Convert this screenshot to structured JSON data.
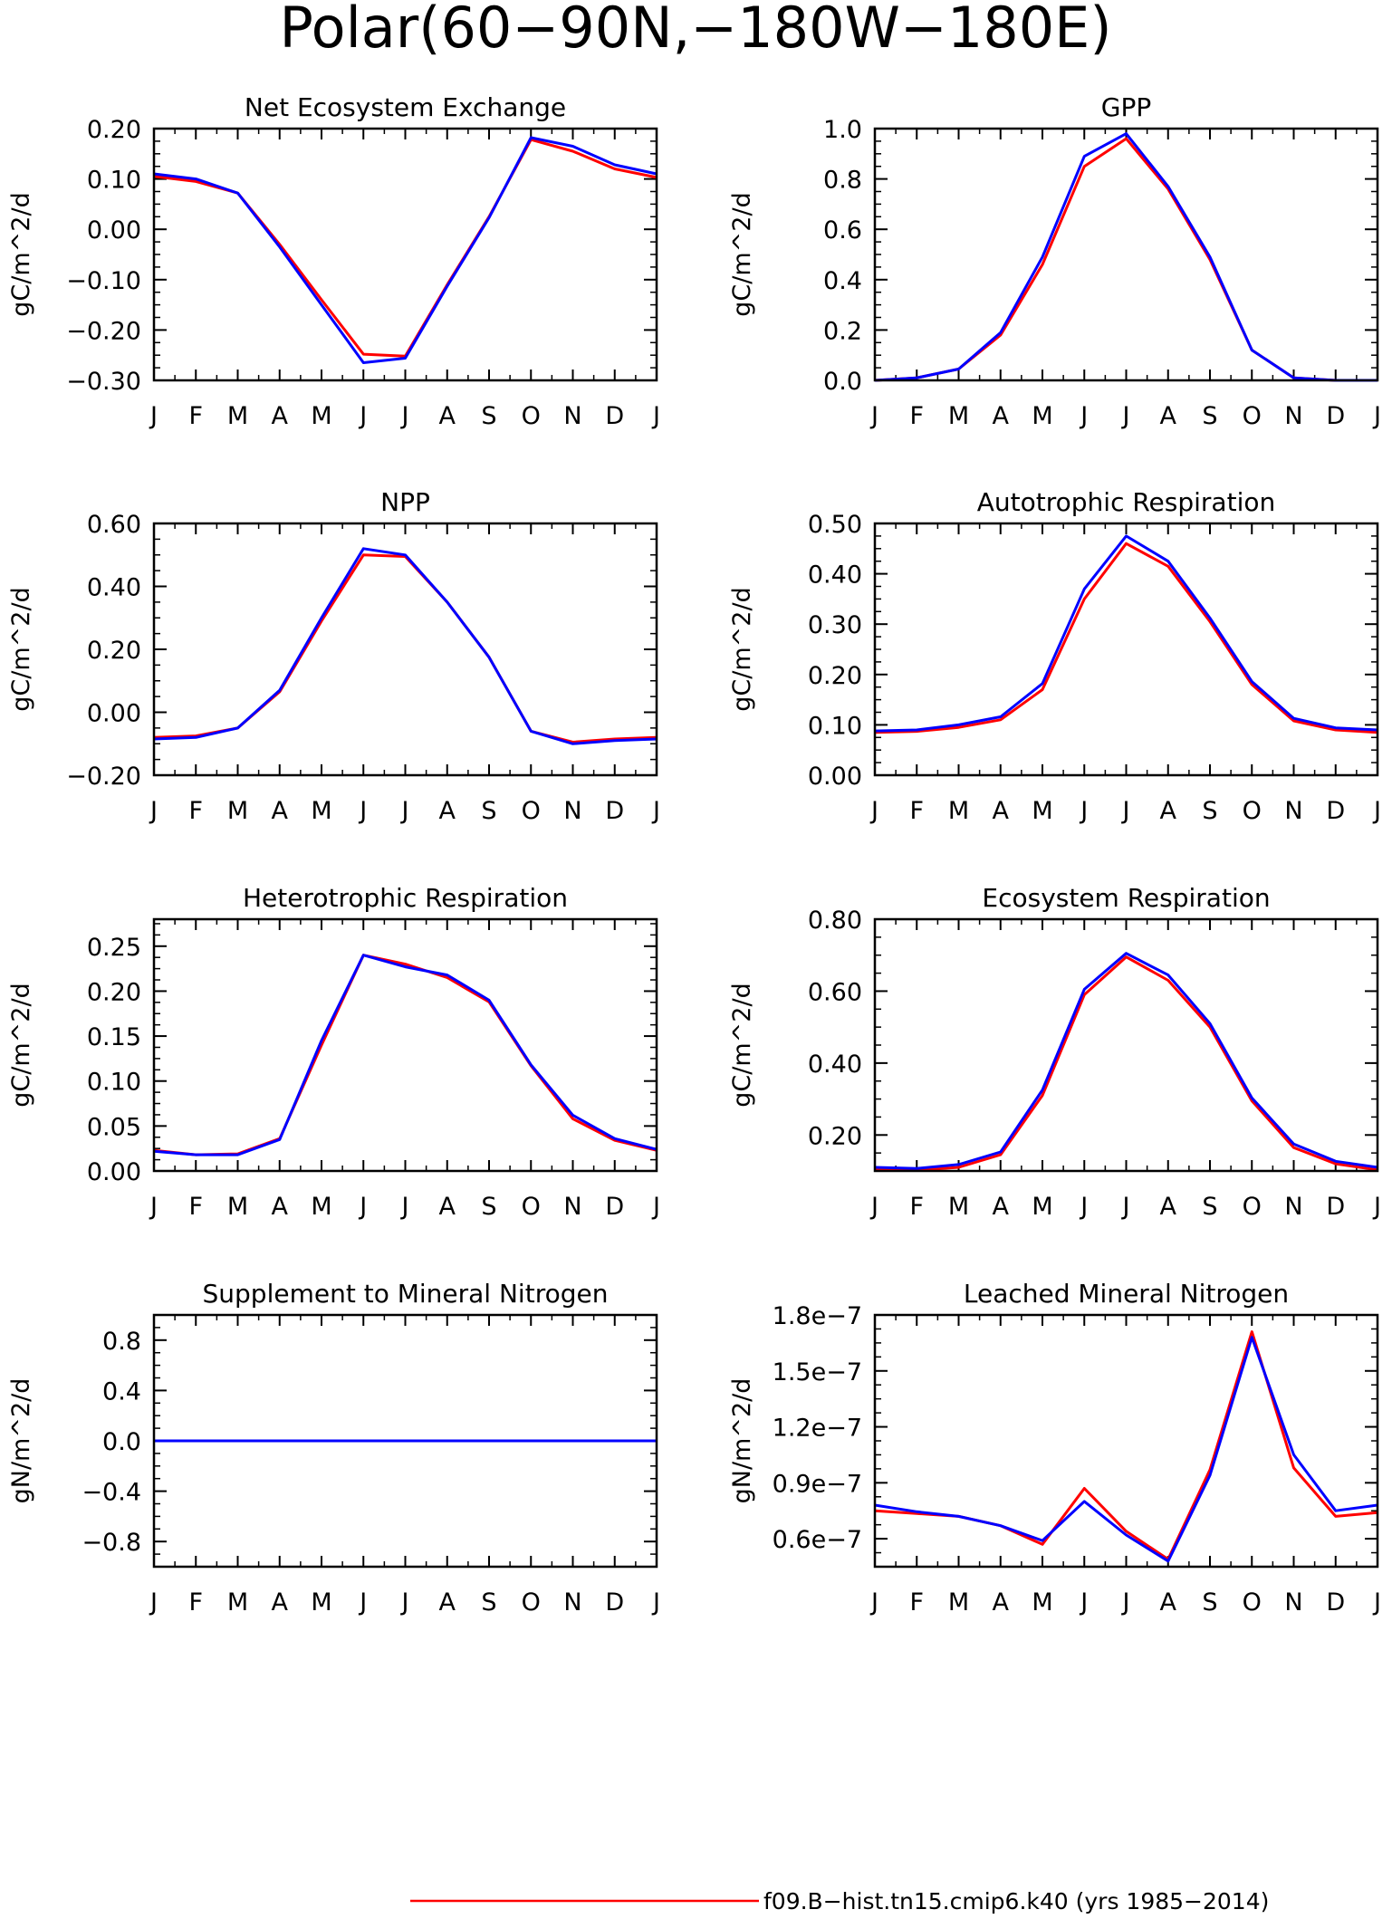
{
  "page": {
    "title": "Polar(60−90N,−180W−180E)"
  },
  "colors": {
    "series1": "#ff0000",
    "series2": "#0000ff",
    "axis": "#000000"
  },
  "legend": {
    "entries": [
      {
        "label": "f09.B−hist.tn15.cmip6.k40 (yrs 1985−2014)",
        "color": "#ff0000"
      }
    ]
  },
  "chart_data": [
    {
      "type": "line",
      "title": "Net Ecosystem Exchange",
      "ylabel": "gC/m^2/d",
      "categories": [
        "J",
        "F",
        "M",
        "A",
        "M",
        "J",
        "J",
        "A",
        "S",
        "O",
        "N",
        "D",
        "J"
      ],
      "ylim": [
        -0.3,
        0.2
      ],
      "yticks": [
        -0.3,
        -0.2,
        -0.1,
        0.0,
        0.1,
        0.2
      ],
      "ytick_labels": [
        "−0.30",
        "−0.20",
        "−0.10",
        "0.00",
        "0.10",
        "0.20"
      ],
      "series": [
        {
          "color": "#ff0000",
          "values": [
            0.105,
            0.095,
            0.072,
            -0.03,
            -0.14,
            -0.248,
            -0.252,
            -0.11,
            0.025,
            0.178,
            0.155,
            0.12,
            0.103
          ]
        },
        {
          "color": "#0000ff",
          "values": [
            0.11,
            0.1,
            0.072,
            -0.035,
            -0.15,
            -0.265,
            -0.256,
            -0.113,
            0.023,
            0.182,
            0.165,
            0.128,
            0.11
          ]
        }
      ]
    },
    {
      "type": "line",
      "title": "GPP",
      "ylabel": "gC/m^2/d",
      "categories": [
        "J",
        "F",
        "M",
        "A",
        "M",
        "J",
        "J",
        "A",
        "S",
        "O",
        "N",
        "D",
        "J"
      ],
      "ylim": [
        0.0,
        1.0
      ],
      "yticks": [
        0.0,
        0.2,
        0.4,
        0.6,
        0.8,
        1.0
      ],
      "ytick_labels": [
        "0.0",
        "0.2",
        "0.4",
        "0.6",
        "0.8",
        "1.0"
      ],
      "series": [
        {
          "color": "#ff0000",
          "values": [
            0.0,
            0.01,
            0.045,
            0.18,
            0.46,
            0.85,
            0.96,
            0.76,
            0.48,
            0.12,
            0.01,
            0.0,
            0.0
          ]
        },
        {
          "color": "#0000ff",
          "values": [
            0.0,
            0.01,
            0.045,
            0.19,
            0.49,
            0.89,
            0.98,
            0.77,
            0.49,
            0.12,
            0.01,
            0.0,
            0.0
          ]
        }
      ]
    },
    {
      "type": "line",
      "title": "NPP",
      "ylabel": "gC/m^2/d",
      "categories": [
        "J",
        "F",
        "M",
        "A",
        "M",
        "J",
        "J",
        "A",
        "S",
        "O",
        "N",
        "D",
        "J"
      ],
      "ylim": [
        -0.2,
        0.6
      ],
      "yticks": [
        -0.2,
        0.0,
        0.2,
        0.4,
        0.6
      ],
      "ytick_labels": [
        "−0.20",
        "0.00",
        "0.20",
        "0.40",
        "0.60"
      ],
      "series": [
        {
          "color": "#ff0000",
          "values": [
            -0.08,
            -0.075,
            -0.05,
            0.065,
            0.29,
            0.5,
            0.495,
            0.35,
            0.175,
            -0.06,
            -0.095,
            -0.085,
            -0.08
          ]
        },
        {
          "color": "#0000ff",
          "values": [
            -0.085,
            -0.08,
            -0.05,
            0.07,
            0.3,
            0.52,
            0.5,
            0.35,
            0.175,
            -0.06,
            -0.1,
            -0.09,
            -0.085
          ]
        }
      ]
    },
    {
      "type": "line",
      "title": "Autotrophic Respiration",
      "ylabel": "gC/m^2/d",
      "categories": [
        "J",
        "F",
        "M",
        "A",
        "M",
        "J",
        "J",
        "A",
        "S",
        "O",
        "N",
        "D",
        "J"
      ],
      "ylim": [
        0.0,
        0.5
      ],
      "yticks": [
        0.0,
        0.1,
        0.2,
        0.3,
        0.4,
        0.5
      ],
      "ytick_labels": [
        "0.00",
        "0.10",
        "0.20",
        "0.30",
        "0.40",
        "0.50"
      ],
      "series": [
        {
          "color": "#ff0000",
          "values": [
            0.085,
            0.087,
            0.095,
            0.11,
            0.17,
            0.35,
            0.46,
            0.415,
            0.305,
            0.18,
            0.108,
            0.09,
            0.085
          ]
        },
        {
          "color": "#0000ff",
          "values": [
            0.088,
            0.09,
            0.1,
            0.116,
            0.182,
            0.37,
            0.475,
            0.425,
            0.312,
            0.186,
            0.113,
            0.094,
            0.09
          ]
        }
      ]
    },
    {
      "type": "line",
      "title": "Heterotrophic Respiration",
      "ylabel": "gC/m^2/d",
      "categories": [
        "J",
        "F",
        "M",
        "A",
        "M",
        "J",
        "J",
        "A",
        "S",
        "O",
        "N",
        "D",
        "J"
      ],
      "ylim": [
        0.0,
        0.28
      ],
      "yticks": [
        0.0,
        0.05,
        0.1,
        0.15,
        0.2,
        0.25
      ],
      "ytick_labels": [
        "0.00",
        "0.05",
        "0.10",
        "0.15",
        "0.20",
        "0.25"
      ],
      "series": [
        {
          "color": "#ff0000",
          "values": [
            0.023,
            0.018,
            0.019,
            0.036,
            0.14,
            0.24,
            0.23,
            0.215,
            0.188,
            0.117,
            0.058,
            0.034,
            0.023
          ]
        },
        {
          "color": "#0000ff",
          "values": [
            0.022,
            0.018,
            0.018,
            0.035,
            0.145,
            0.24,
            0.227,
            0.218,
            0.19,
            0.118,
            0.062,
            0.036,
            0.024
          ]
        }
      ]
    },
    {
      "type": "line",
      "title": "Ecosystem Respiration",
      "ylabel": "gC/m^2/d",
      "categories": [
        "J",
        "F",
        "M",
        "A",
        "M",
        "J",
        "J",
        "A",
        "S",
        "O",
        "N",
        "D",
        "J"
      ],
      "ylim": [
        0.1,
        0.8
      ],
      "yticks": [
        0.2,
        0.4,
        0.6,
        0.8
      ],
      "ytick_labels": [
        "0.20",
        "0.40",
        "0.60",
        "0.80"
      ],
      "series": [
        {
          "color": "#ff0000",
          "values": [
            0.105,
            0.102,
            0.11,
            0.145,
            0.31,
            0.59,
            0.695,
            0.63,
            0.5,
            0.295,
            0.165,
            0.12,
            0.103
          ]
        },
        {
          "color": "#0000ff",
          "values": [
            0.11,
            0.107,
            0.118,
            0.153,
            0.325,
            0.605,
            0.705,
            0.645,
            0.51,
            0.303,
            0.175,
            0.127,
            0.11
          ]
        }
      ]
    },
    {
      "type": "line",
      "title": "Supplement to Mineral Nitrogen",
      "ylabel": "gN/m^2/d",
      "categories": [
        "J",
        "F",
        "M",
        "A",
        "M",
        "J",
        "J",
        "A",
        "S",
        "O",
        "N",
        "D",
        "J"
      ],
      "ylim": [
        -1.0,
        1.0
      ],
      "yticks": [
        -0.8,
        -0.4,
        0.0,
        0.4,
        0.8
      ],
      "ytick_labels": [
        "−0.8",
        "−0.4",
        "0.0",
        "0.4",
        "0.8"
      ],
      "series": [
        {
          "color": "#ff0000",
          "values": [
            0,
            0,
            0,
            0,
            0,
            0,
            0,
            0,
            0,
            0,
            0,
            0,
            0
          ]
        },
        {
          "color": "#0000ff",
          "values": [
            0,
            0,
            0,
            0,
            0,
            0,
            0,
            0,
            0,
            0,
            0,
            0,
            0
          ]
        }
      ]
    },
    {
      "type": "line",
      "title": "Leached Mineral Nitrogen",
      "ylabel": "gN/m^2/d",
      "categories": [
        "J",
        "F",
        "M",
        "A",
        "M",
        "J",
        "J",
        "A",
        "S",
        "O",
        "N",
        "D",
        "J"
      ],
      "ylim": [
        4.5e-08,
        1.8e-07
      ],
      "yticks": [
        6e-08,
        9e-08,
        1.2e-07,
        1.5e-07,
        1.8e-07
      ],
      "ytick_labels": [
        "0.6e−7",
        "0.9e−7",
        "1.2e−7",
        "1.5e−7",
        "1.8e−7"
      ],
      "series": [
        {
          "color": "#ff0000",
          "values": [
            7.5e-08,
            7.35e-08,
            7.2e-08,
            6.7e-08,
            5.7e-08,
            8.7e-08,
            6.4e-08,
            4.9e-08,
            9.7e-08,
            1.71e-07,
            9.8e-08,
            7.2e-08,
            7.4e-08
          ]
        },
        {
          "color": "#0000ff",
          "values": [
            7.8e-08,
            7.45e-08,
            7.2e-08,
            6.7e-08,
            5.9e-08,
            8e-08,
            6.2e-08,
            4.8e-08,
            9.4e-08,
            1.68e-07,
            1.05e-07,
            7.5e-08,
            7.8e-08
          ]
        }
      ]
    }
  ]
}
